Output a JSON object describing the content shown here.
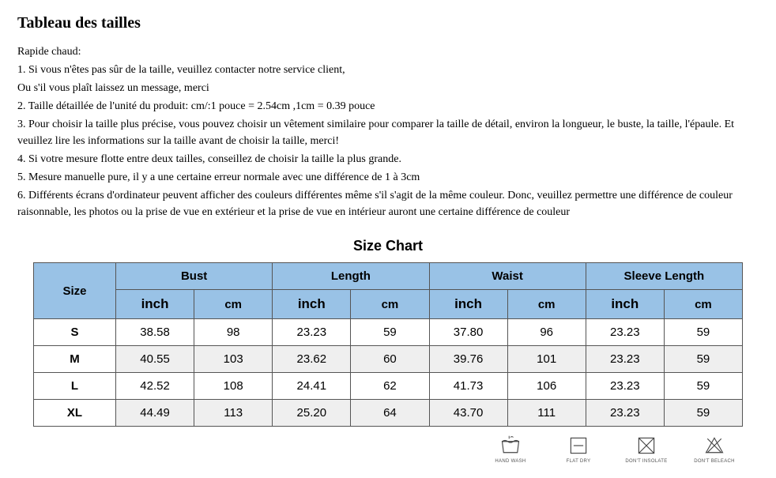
{
  "page": {
    "title": "Tableau des tailles",
    "intro_label": "Rapide chaud:",
    "intro_lines": [
      "1. Si vous n'êtes pas sûr de la taille, veuillez contacter notre service client,",
      "Ou s'il vous plaît laissez un message, merci",
      "2. Taille détaillée de l'unité du produit: cm/:1 pouce = 2.54cm ,1cm = 0.39 pouce",
      "3. Pour choisir la taille plus précise, vous pouvez choisir un vêtement similaire pour comparer la taille de détail, environ la longueur, le buste, la taille, l'épaule. Et veuillez lire les informations sur la taille avant de choisir la taille, merci!",
      "4. Si votre mesure flotte entre deux tailles, conseillez de choisir la taille la plus grande.",
      "5. Mesure manuelle pure, il y a une certaine erreur normale avec une différence de 1 à 3cm",
      "6. Différents écrans d'ordinateur peuvent afficher des couleurs différentes même s'il s'agit de la même couleur. Donc, veuillez permettre une différence de couleur raisonnable, les photos ou la prise de vue en extérieur et la prise de vue en intérieur auront une certaine différence de couleur"
    ]
  },
  "chart": {
    "title": "Size Chart",
    "type": "table",
    "header_bg": "#99c2e6",
    "border_color": "#555555",
    "alt_row_bg": "#efefef",
    "size_header": "Size",
    "group_headers": [
      "Bust",
      "Length",
      "Waist",
      "Sleeve Length"
    ],
    "sub_headers": {
      "inch": "inch",
      "cm": "cm"
    },
    "rows": [
      {
        "size": "S",
        "bust_in": "38.58",
        "bust_cm": "98",
        "len_in": "23.23",
        "len_cm": "59",
        "waist_in": "37.80",
        "waist_cm": "96",
        "sleeve_in": "23.23",
        "sleeve_cm": "59"
      },
      {
        "size": "M",
        "bust_in": "40.55",
        "bust_cm": "103",
        "len_in": "23.62",
        "len_cm": "60",
        "waist_in": "39.76",
        "waist_cm": "101",
        "sleeve_in": "23.23",
        "sleeve_cm": "59"
      },
      {
        "size": "L",
        "bust_in": "42.52",
        "bust_cm": "108",
        "len_in": "24.41",
        "len_cm": "62",
        "waist_in": "41.73",
        "waist_cm": "106",
        "sleeve_in": "23.23",
        "sleeve_cm": "59"
      },
      {
        "size": "XL",
        "bust_in": "44.49",
        "bust_cm": "113",
        "len_in": "25.20",
        "len_cm": "64",
        "waist_in": "43.70",
        "waist_cm": "111",
        "sleeve_in": "23.23",
        "sleeve_cm": "59"
      }
    ]
  },
  "care": {
    "items": [
      {
        "name": "hand-wash-icon",
        "label": "HAND WASH"
      },
      {
        "name": "flat-dry-icon",
        "label": "FLAT DRY"
      },
      {
        "name": "dont-insolate-icon",
        "label": "DON'T INSOLATE"
      },
      {
        "name": "dont-bleach-icon",
        "label": "DON'T BELEACH"
      }
    ]
  }
}
